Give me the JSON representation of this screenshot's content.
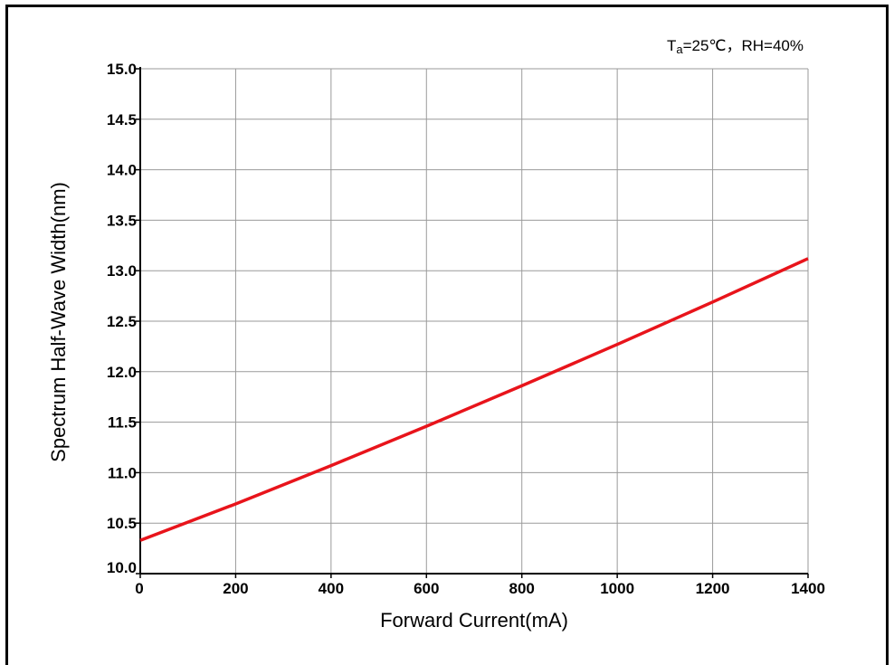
{
  "chart_data": {
    "type": "line",
    "title": "",
    "annotation": {
      "prefix": "T",
      "subscript": "a",
      "suffix": "=25℃，RH=40%"
    },
    "xlabel": "Forward Current(mA)",
    "ylabel": "Spectrum Half-Wave Width(nm)",
    "xlim": [
      0,
      1400
    ],
    "ylim": [
      10.0,
      15.0
    ],
    "xticks": [
      0,
      200,
      400,
      600,
      800,
      1000,
      1200,
      1400
    ],
    "xtick_labels": [
      "0",
      "200",
      "400",
      "600",
      "800",
      "1000",
      "1200",
      "1400"
    ],
    "yticks": [
      10.0,
      10.5,
      11.0,
      11.5,
      12.0,
      12.5,
      13.0,
      13.5,
      14.0,
      14.5,
      15.0
    ],
    "ytick_labels": [
      "10.0",
      "10.5",
      "11.0",
      "11.5",
      "12.0",
      "12.5",
      "13.0",
      "13.5",
      "14.0",
      "14.5",
      "15.0"
    ],
    "grid": true,
    "series": [
      {
        "color": "#e8141b",
        "x": [
          0,
          200,
          400,
          600,
          800,
          1000,
          1200,
          1400
        ],
        "y": [
          10.33,
          10.69,
          11.07,
          11.46,
          11.86,
          12.27,
          12.69,
          13.12
        ]
      }
    ]
  }
}
